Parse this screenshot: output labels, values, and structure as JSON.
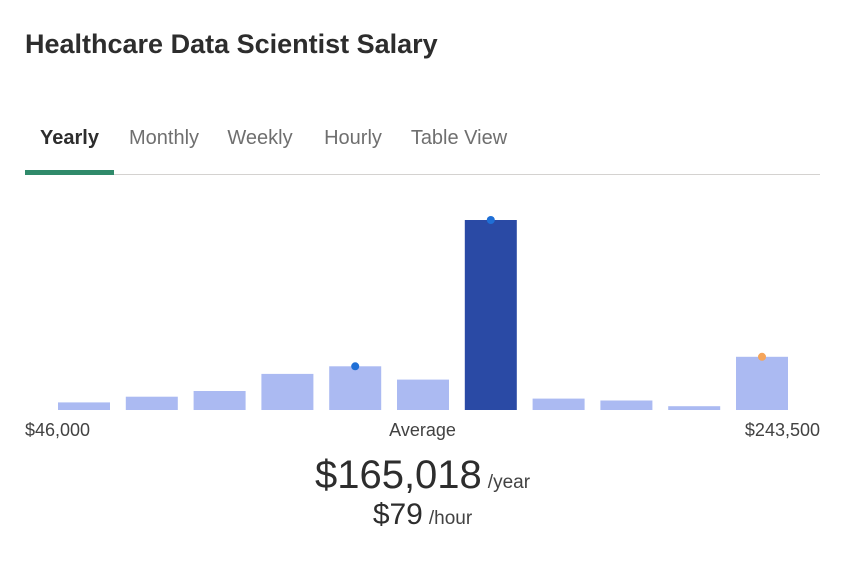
{
  "title": "Healthcare Data Scientist Salary",
  "tabs": [
    {
      "label": "Yearly",
      "active": true
    },
    {
      "label": "Monthly",
      "active": false
    },
    {
      "label": "Weekly",
      "active": false
    },
    {
      "label": "Hourly",
      "active": false
    },
    {
      "label": "Table View",
      "active": false
    }
  ],
  "colors": {
    "bar": "#abbaf2",
    "bar_highlight": "#2a4aa5",
    "marker_blue": "#1f6fd6",
    "marker_orange": "#f5a55a",
    "tab_active_underline": "#2f8a6a"
  },
  "chart_data": {
    "type": "bar",
    "x_min_label": "$46,000",
    "x_max_label": "$243,500",
    "values": [
      4,
      7,
      10,
      19,
      23,
      16,
      100,
      6,
      5,
      2,
      28
    ],
    "highlight_index": 6,
    "markers": [
      {
        "index": 4,
        "color": "#1f6fd6"
      },
      {
        "index": 6,
        "color": "#1f6fd6"
      },
      {
        "index": 10,
        "color": "#f5a55a"
      }
    ]
  },
  "average_label": "Average",
  "average_value": "$165,018",
  "average_unit": "/year",
  "hourly_value": "$79",
  "hourly_unit": "/hour"
}
